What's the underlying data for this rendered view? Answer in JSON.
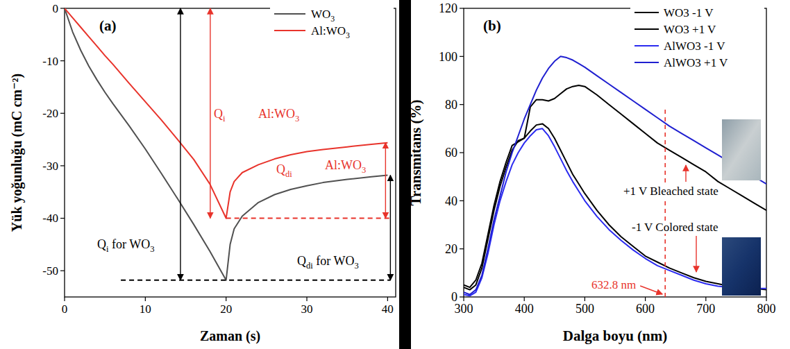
{
  "chart_data": [
    {
      "type": "line",
      "title": "(a)",
      "x_label": "Zaman (s)",
      "y_label": "Yük yoğunluğu (mC cm⁻²)",
      "x": [
        0,
        1,
        2,
        3,
        4,
        5,
        6,
        8,
        10,
        12,
        14,
        16,
        18,
        20,
        20.5,
        21,
        22,
        24,
        26,
        28,
        30,
        32,
        35,
        38,
        40
      ],
      "series": [
        {
          "name": "WO3",
          "color": "#505050",
          "values": [
            0,
            -4.5,
            -8,
            -11,
            -13.6,
            -16,
            -18.2,
            -22.4,
            -26.8,
            -31.5,
            -36.3,
            -41.2,
            -46.3,
            -51.8,
            -45,
            -42,
            -39.6,
            -37,
            -35.5,
            -34.5,
            -33.8,
            -33.2,
            -32.6,
            -32.1,
            -31.8
          ]
        },
        {
          "name": "Al:WO3",
          "color": "#e8332b",
          "values": [
            0,
            -1.8,
            -3.6,
            -5.4,
            -7.2,
            -9,
            -10.7,
            -14.3,
            -17.8,
            -21.3,
            -25,
            -28.8,
            -33.5,
            -40,
            -35,
            -33,
            -31.3,
            -29.8,
            -28.7,
            -27.9,
            -27.3,
            -26.9,
            -26.4,
            -25.9,
            -25.6
          ]
        }
      ],
      "xlim": [
        0,
        41
      ],
      "ylim": [
        -55,
        0
      ],
      "xticks": [
        0,
        10,
        20,
        30,
        40
      ],
      "yticks": [
        -50,
        -40,
        -30,
        -20,
        -10,
        0
      ],
      "grid": false,
      "legend": "upper right",
      "annotations": [
        {
          "text": "Qi",
          "color": "#e8332b"
        },
        {
          "text": "Al:WO3",
          "color": "#e8332b"
        },
        {
          "text": "Qdi",
          "color": "#e8332b"
        },
        {
          "text": "Al:WO3",
          "color": "#e8332b"
        },
        {
          "text": "Qi for WO3",
          "color": "#000000"
        },
        {
          "text": "Qdi for WO3",
          "color": "#000000"
        }
      ]
    },
    {
      "type": "line",
      "title": "(b)",
      "x_label": "Dalga boyu (nm)",
      "y_label": "Transmitans (%)",
      "x": [
        300,
        310,
        320,
        330,
        340,
        350,
        360,
        370,
        380,
        390,
        400,
        410,
        420,
        430,
        440,
        450,
        460,
        470,
        480,
        490,
        500,
        520,
        540,
        560,
        580,
        600,
        620,
        640,
        660,
        680,
        700,
        720,
        740,
        760,
        780,
        800
      ],
      "series": [
        {
          "name": "WO3 -1 V",
          "color": "#000000",
          "values": [
            4,
            3,
            5,
            12,
            24,
            36,
            46,
            54,
            61,
            65,
            66,
            69,
            71.5,
            72,
            70,
            66,
            61,
            56,
            51,
            47,
            43,
            36,
            30,
            25,
            21,
            17,
            14.5,
            12,
            10,
            8,
            6.5,
            5.5,
            4.5,
            4,
            3.5,
            3
          ]
        },
        {
          "name": "WO3 +1 V",
          "color": "#000000",
          "values": [
            5,
            4,
            7,
            14,
            26,
            38,
            48,
            56,
            63,
            64.5,
            66,
            79,
            82,
            82,
            81.5,
            82.5,
            84.5,
            86.5,
            87.5,
            88,
            87.5,
            84,
            80,
            76,
            72,
            68,
            64,
            61,
            58,
            55,
            52,
            48,
            45,
            42,
            39,
            36
          ]
        },
        {
          "name": "AlWO3 -1 V",
          "color": "#2b2bf0",
          "values": [
            1,
            0.5,
            2,
            8,
            18,
            30,
            40,
            48,
            55,
            60,
            64,
            67,
            69.5,
            70,
            67,
            62.5,
            57.5,
            52.5,
            48,
            44,
            40,
            33.5,
            28,
            23.5,
            19.5,
            16,
            13,
            11,
            9,
            7,
            5.5,
            4.5,
            4,
            3.5,
            3.5,
            3.5
          ]
        },
        {
          "name": "AlWO3 +1 V",
          "color": "#1f1fd0",
          "values": [
            2,
            1,
            3,
            9,
            20,
            32,
            42,
            52,
            60,
            67,
            74,
            80,
            86,
            91,
            95,
            98,
            100,
            99.5,
            98.5,
            97,
            95.5,
            92,
            88.5,
            85,
            81.5,
            78,
            74.5,
            71,
            68,
            65,
            62,
            59,
            56,
            53,
            50,
            47
          ]
        }
      ],
      "xlim": [
        300,
        800
      ],
      "ylim": [
        0,
        120
      ],
      "xticks": [
        300,
        400,
        500,
        600,
        700,
        800
      ],
      "yticks": [
        0,
        20,
        40,
        60,
        80,
        100,
        120
      ],
      "grid": false,
      "legend": "upper right",
      "annotations": [
        {
          "text": "632.8 nm",
          "x": 632.8,
          "color": "#e8332b"
        },
        {
          "text": "+1 V Bleached state",
          "color": "#000000"
        },
        {
          "text": "-1 V Colored state",
          "color": "#000000"
        }
      ]
    }
  ]
}
